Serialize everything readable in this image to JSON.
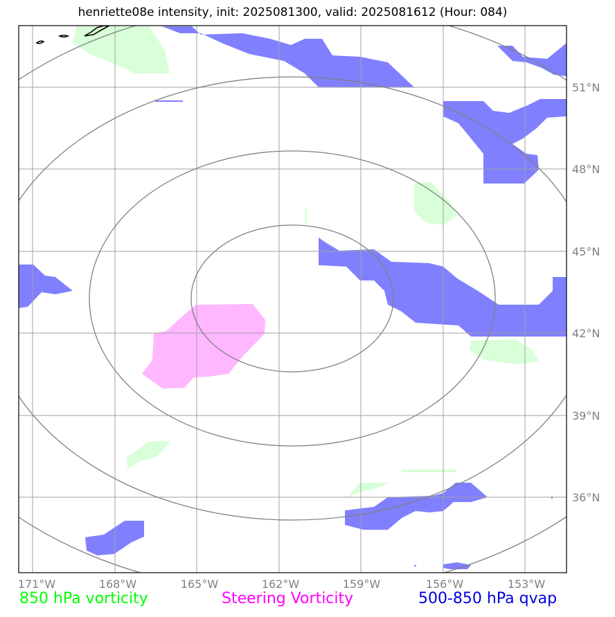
{
  "title": "henriette08e intensity, init: 2025081300, valid: 2025081612 (Hour: 084)",
  "colors": {
    "vorticity_850": "#ccffcc",
    "steering_vorticity": "#ffaaff",
    "qvap": "#5555ff",
    "gridline": "#a0a0a0",
    "range_ring": "#808080",
    "coastline": "#000000",
    "tick_label": "#808080"
  },
  "legend": [
    {
      "label": "850 hPa vorticity",
      "color": "#00ff00"
    },
    {
      "label": "Steering Vorticity",
      "color": "#ff00ff"
    },
    {
      "label": "500-850 hPa qvap",
      "color": "#0000dd"
    }
  ],
  "axes": {
    "lon_ticks": [
      "171°W",
      "168°W",
      "165°W",
      "162°W",
      "159°W",
      "156°W",
      "153°W"
    ],
    "lat_ticks": [
      "51°N",
      "48°N",
      "45°N",
      "42°N",
      "39°N",
      "36°N"
    ]
  }
}
